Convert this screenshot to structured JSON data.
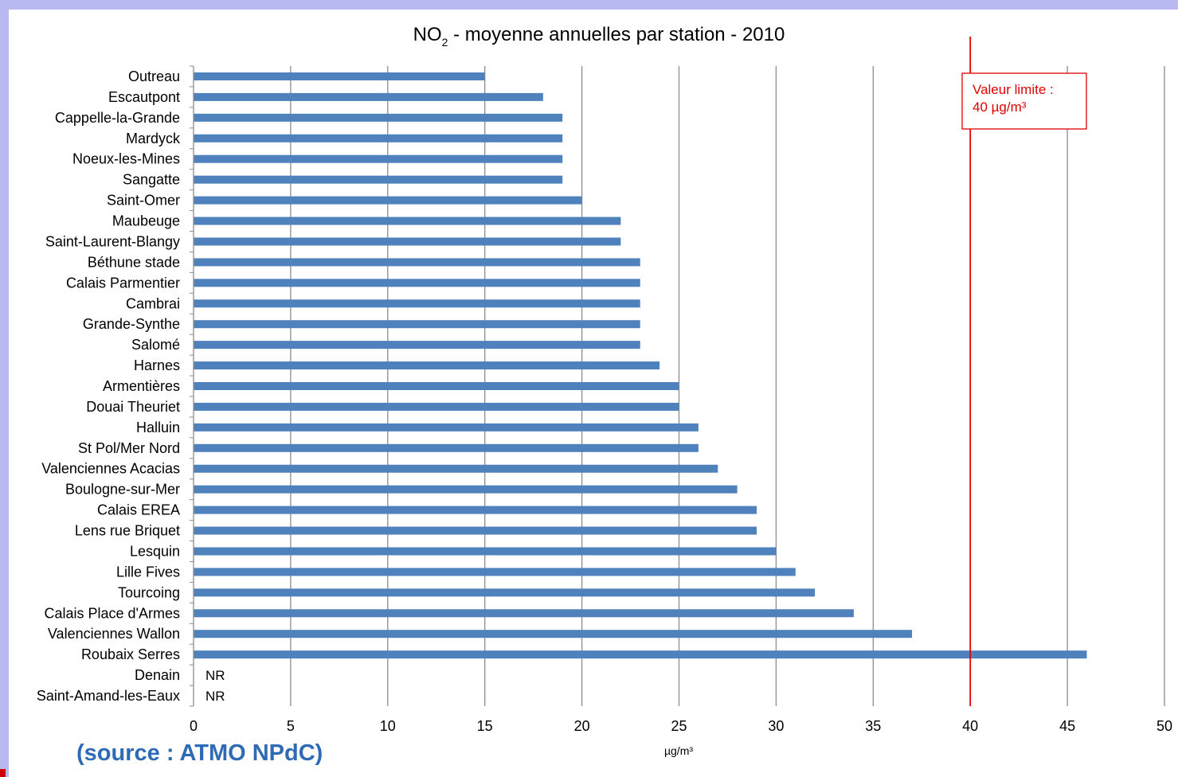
{
  "chart_data": {
    "type": "bar",
    "orientation": "horizontal",
    "title": {
      "main": "NO",
      "subscript": "2",
      "rest": " - moyenne annuelles par station - 2010"
    },
    "xlabel": "µg/m³",
    "ylabel": "",
    "xlim": [
      0,
      50
    ],
    "x_ticks": [
      0,
      5,
      10,
      15,
      20,
      25,
      30,
      35,
      40,
      45,
      50
    ],
    "grid": true,
    "bar_color": "#4f81bd",
    "categories": [
      "Outreau",
      "Escautpont",
      "Cappelle-la-Grande",
      "Mardyck",
      "Noeux-les-Mines",
      "Sangatte",
      "Saint-Omer",
      "Maubeuge",
      "Saint-Laurent-Blangy",
      "Béthune stade",
      "Calais Parmentier",
      "Cambrai",
      "Grande-Synthe",
      "Salomé",
      "Harnes",
      "Armentières",
      "Douai Theuriet",
      "Halluin",
      "St Pol/Mer Nord",
      "Valenciennes Acacias",
      "Boulogne-sur-Mer",
      "Calais EREA",
      "Lens rue Briquet",
      "Lesquin",
      "Lille Fives",
      "Tourcoing",
      "Calais Place d'Armes",
      "Valenciennes Wallon",
      "Roubaix Serres",
      "Denain",
      "Saint-Amand-les-Eaux"
    ],
    "values": [
      15,
      18,
      19,
      19,
      19,
      19,
      20,
      22,
      22,
      23,
      23,
      23,
      23,
      23,
      24,
      25,
      25,
      26,
      26,
      27,
      28,
      29,
      29,
      30,
      31,
      32,
      34,
      37,
      46,
      null,
      null
    ],
    "missing_label": "NR",
    "limit_line": {
      "value": 40,
      "color": "#e00000",
      "label_line1": "Valeur limite :",
      "label_line2": "40 µg/m³"
    }
  },
  "source_text": "(source : ATMO NPdC)",
  "colors": {
    "frame": "#b9b9f2",
    "source_text": "#2f6bb5",
    "grid": "#8c8c8c"
  }
}
